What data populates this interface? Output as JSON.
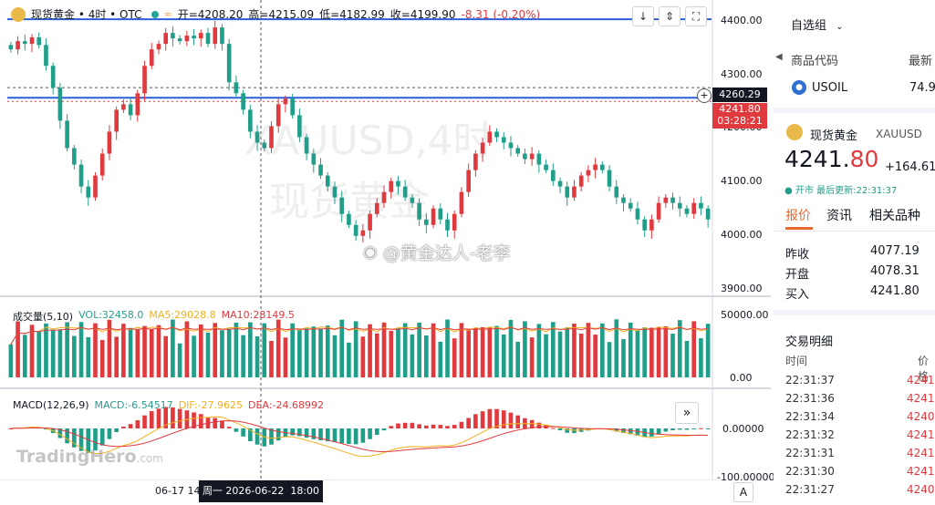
{
  "header": {
    "symbol_title": "现货黄金 • 4时 • OTC",
    "open": "开=4208.20",
    "high": "高=4215.09",
    "low": "低=4182.99",
    "close": "收=4199.90",
    "change": "-8.31 (-0.20%)"
  },
  "toolbar": {
    "down_icon": "arrow-down-icon",
    "collapse_icon": "collapse-icon",
    "fullscreen_icon": "fullscreen-icon"
  },
  "price_axis": {
    "ticks": [
      "4400.00",
      "4300.00",
      "4200.00",
      "4100.00",
      "4000.00",
      "3900.00"
    ],
    "crosshair_value": "4260.29",
    "current_price": "4241.80",
    "countdown": "03:28:21"
  },
  "watermark": {
    "symbol": "XAUUSD,4时",
    "name": "现货黄金",
    "credit": "@黄金达人-老李",
    "brand": "TradingHero",
    "brand_suffix": ".com"
  },
  "volume": {
    "title": "成交量(5,10)",
    "vol": "VOL:32458.0",
    "ma5": "MA5:29028.8",
    "ma10": "MA10:28149.5",
    "axis_top": "50000.00",
    "axis_bottom": "0.00"
  },
  "macd": {
    "title": "MACD(12,26,9)",
    "macd": "MACD:-6.54517",
    "dif": "DIF:-27.9625",
    "dea": "DEA:-24.68992",
    "axis_zero": "0.00000",
    "axis_bottom": "-100.00000"
  },
  "time_axis": {
    "label": "06-17 14",
    "crosshair_time": "周一 2026-06-22  18:00",
    "auto_button": "A"
  },
  "colors": {
    "up": "#e0393e",
    "down": "#1f9e89",
    "line_blue": "#2b5fd9",
    "ma5": "#f2b01e",
    "ma10": "#e0393e"
  },
  "right_panel": {
    "watchlist_title": "自选组",
    "col_code": "商品代码",
    "col_latest": "最新",
    "watch_symbol": "USOIL",
    "watch_price": "74.9",
    "quote_name": "现货黄金",
    "quote_code": "XAUUSD",
    "price_main": "4241.",
    "price_decimal": "80",
    "price_change": "+164.61",
    "market_status": "开市",
    "last_update": "最后更新:22:31:37",
    "tabs": [
      "报价",
      "资讯",
      "相关品种"
    ],
    "stats": [
      {
        "label": "昨收",
        "value": "4077.19"
      },
      {
        "label": "开盘",
        "value": "4078.31"
      },
      {
        "label": "买入",
        "value": "4241.80"
      }
    ],
    "trades_title": "交易明细",
    "trades_col_time": "时间",
    "trades_col_price": "价格",
    "trades": [
      {
        "time": "22:31:37",
        "price": "4241"
      },
      {
        "time": "22:31:36",
        "price": "4241"
      },
      {
        "time": "22:31:34",
        "price": "4240"
      },
      {
        "time": "22:31:32",
        "price": "4241"
      },
      {
        "time": "22:31:31",
        "price": "4241"
      },
      {
        "time": "22:31:30",
        "price": "4241"
      },
      {
        "time": "22:31:27",
        "price": "4240"
      }
    ]
  },
  "chart_data": {
    "type": "candlestick",
    "y_range": [
      3880,
      4420
    ],
    "horizontal_lines": [
      4385,
      4241.8
    ],
    "crosshair_price": 4260.29,
    "candles_close": [
      4330,
      4345,
      4340,
      4352,
      4338,
      4300,
      4260,
      4200,
      4150,
      4120,
      4080,
      4060,
      4100,
      4140,
      4180,
      4220,
      4230,
      4210,
      4250,
      4300,
      4330,
      4340,
      4360,
      4350,
      4345,
      4355,
      4350,
      4360,
      4340,
      4370,
      4340,
      4270,
      4250,
      4220,
      4180,
      4160,
      4150,
      4190,
      4230,
      4240,
      4210,
      4170,
      4140,
      4120,
      4100,
      4080,
      4060,
      4030,
      4010,
      3990,
      4000,
      4030,
      4050,
      4070,
      4090,
      4080,
      4060,
      4050,
      4020,
      4010,
      4040,
      4020,
      4000,
      4030,
      4070,
      4110,
      4140,
      4160,
      4180,
      4170,
      4160,
      4150,
      4140,
      4130,
      4140,
      4120,
      4110,
      4090,
      4080,
      4060,
      4080,
      4100,
      4110,
      4120,
      4110,
      4080,
      4060,
      4050,
      4040,
      4020,
      4000,
      4020,
      4050,
      4060,
      4050,
      4040,
      4030,
      4050,
      4040,
      4020
    ]
  }
}
